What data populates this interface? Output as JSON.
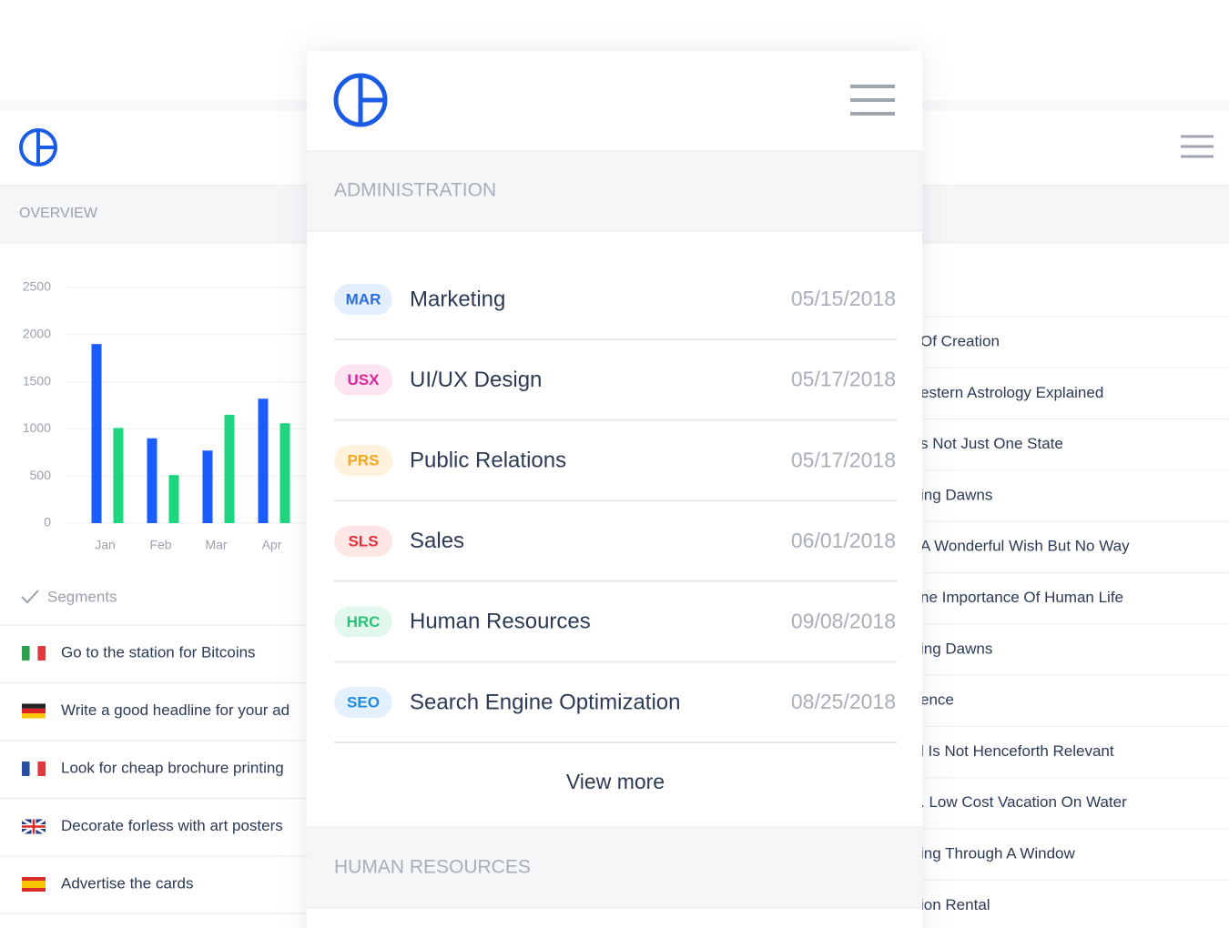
{
  "left_panel": {
    "section": "OVERVIEW",
    "chart": {
      "type": "bar",
      "categories": [
        "Jan",
        "Feb",
        "Mar",
        "Apr"
      ],
      "series": [
        {
          "color": "#1a5cff",
          "values": [
            1900,
            900,
            770,
            1320
          ]
        },
        {
          "color": "#1fd680",
          "values": [
            1010,
            510,
            1150,
            1060
          ]
        }
      ],
      "ylim": [
        0,
        2500
      ],
      "yticks": [
        0,
        500,
        1000,
        1500,
        2000,
        2500
      ],
      "grid": true
    },
    "segments_label": "Segments",
    "segments": [
      "Go to the station for Bitcoins",
      "Write a good headline for your ad",
      "Look for cheap brochure printing",
      "Decorate forless with art posters",
      "Advertise the cards"
    ]
  },
  "center_panel": {
    "section": "ADMINISTRATION",
    "rows": [
      {
        "badge": "MAR",
        "title": "Marketing",
        "date": "05/15/2018"
      },
      {
        "badge": "USX",
        "title": "UI/UX Design",
        "date": "05/17/2018"
      },
      {
        "badge": "PRS",
        "title": "Public Relations",
        "date": "05/17/2018"
      },
      {
        "badge": "SLS",
        "title": "Sales",
        "date": "06/01/2018"
      },
      {
        "badge": "HRC",
        "title": "Human Resources",
        "date": "09/08/2018"
      },
      {
        "badge": "SEO",
        "title": "Search Engine Optimization",
        "date": "08/25/2018"
      }
    ],
    "view_more": "View more",
    "next_section": "HUMAN RESOURCES"
  },
  "right_panel": {
    "items": [
      "Of Creation",
      "estern Astrology Explained",
      "s Not Just One State",
      "ing Dawns",
      "A Wonderful Wish But No Way",
      "ne Importance Of Human Life",
      "ing Dawns",
      "ence",
      "l Is Not Henceforth Relevant",
      ". Low Cost Vacation On Water",
      "ing Through A Window",
      "ion Rental"
    ]
  }
}
